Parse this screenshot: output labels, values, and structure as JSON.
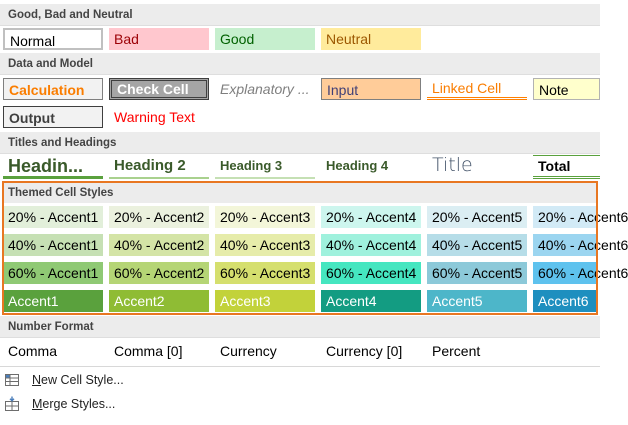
{
  "sections": {
    "good_bad_neutral": "Good, Bad and Neutral",
    "data_model": "Data and Model",
    "titles_headings": "Titles and Headings",
    "themed": "Themed Cell Styles",
    "number_format": "Number Format"
  },
  "good_bad_neutral": {
    "normal": "Normal",
    "bad": "Bad",
    "good": "Good",
    "neutral": "Neutral"
  },
  "data_model": {
    "calculation": "Calculation",
    "check_cell": "Check Cell",
    "explanatory": "Explanatory ...",
    "input": "Input",
    "linked_cell": "Linked Cell",
    "note": "Note",
    "output": "Output",
    "warning_text": "Warning Text"
  },
  "titles": {
    "heading1": "Headin...",
    "heading2": "Heading 2",
    "heading3": "Heading 3",
    "heading4": "Heading 4",
    "title": "Title",
    "total": "Total"
  },
  "themed": {
    "rows": [
      [
        "20% - Accent1",
        "20% - Accent2",
        "20% - Accent3",
        "20% - Accent4",
        "20% - Accent5",
        "20% - Accent6"
      ],
      [
        "40% - Accent1",
        "40% - Accent2",
        "40% - Accent3",
        "40% - Accent4",
        "40% - Accent5",
        "40% - Accent6"
      ],
      [
        "60% - Accent1",
        "60% - Accent2",
        "60% - Accent3",
        "60% - Accent4",
        "60% - Accent5",
        "60% - Accent6"
      ],
      [
        "Accent1",
        "Accent2",
        "Accent3",
        "Accent4",
        "Accent5",
        "Accent6"
      ]
    ]
  },
  "number_format": {
    "comma": "Comma",
    "comma0": "Comma [0]",
    "currency": "Currency",
    "currency0": "Currency [0]",
    "percent": "Percent"
  },
  "menu": {
    "new_cell_style": "New Cell Style...",
    "merge_styles": "Merge Styles..."
  },
  "colors": {
    "selection_border": "#e87722",
    "accent1": "#5aa13d",
    "accent2": "#8fbc34",
    "accent3": "#c2d23a",
    "accent4": "#139c82",
    "accent5": "#4db6c9",
    "accent6": "#1e8fbf"
  },
  "icons": {
    "new_cell_style": "new-style-icon",
    "merge_styles": "merge-icon"
  }
}
